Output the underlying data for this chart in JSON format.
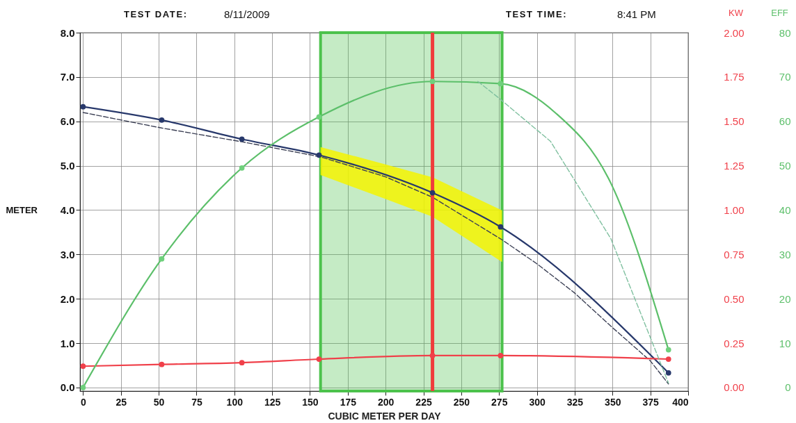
{
  "chart_data": {
    "type": "line",
    "xlabel": "CUBIC METER PER DAY",
    "ylabel": "METER",
    "y2label": "KW",
    "y3label": "EFF",
    "annotations": [
      "TEST DATE:",
      "8/11/2009",
      "TEST TIME:",
      "8:41 PM"
    ],
    "xlim": [
      -2,
      400
    ],
    "xticks": [
      0,
      25,
      50,
      75,
      100,
      125,
      150,
      175,
      200,
      225,
      250,
      275,
      300,
      325,
      350,
      375,
      400
    ],
    "ylim": [
      -0.08,
      8
    ],
    "yticks": [
      {
        "value": 0,
        "label": "0.0"
      },
      {
        "value": 1,
        "label": "1.0"
      },
      {
        "value": 2,
        "label": "2.0"
      },
      {
        "value": 3,
        "label": "3.0"
      },
      {
        "value": 4,
        "label": "4.0"
      },
      {
        "value": 5,
        "label": "5.0"
      },
      {
        "value": 6,
        "label": "6.0"
      },
      {
        "value": 7,
        "label": "7.0"
      },
      {
        "value": 8,
        "label": "8.0"
      }
    ],
    "y2lim": [
      -0.02,
      2
    ],
    "y2ticks": [
      {
        "value": 0,
        "label": "0.00"
      },
      {
        "value": 0.25,
        "label": "0.25"
      },
      {
        "value": 0.5,
        "label": "0.50"
      },
      {
        "value": 0.75,
        "label": "0.75"
      },
      {
        "value": 1,
        "label": "1.00"
      },
      {
        "value": 1.25,
        "label": "1.25"
      },
      {
        "value": 1.5,
        "label": "1.50"
      },
      {
        "value": 1.75,
        "label": "1.75"
      },
      {
        "value": 2,
        "label": "2.00"
      }
    ],
    "y3lim": [
      -0.8,
      80
    ],
    "y3ticks": [
      0,
      10,
      20,
      30,
      40,
      50,
      60,
      70,
      80
    ],
    "grid": true,
    "bands": [
      {
        "axis": "x",
        "from": 157,
        "to": 277,
        "color": "#4cc24c"
      }
    ],
    "ref_lines": [
      {
        "axis": "x",
        "value": 231,
        "color": "#f03c3c"
      }
    ],
    "series": [
      {
        "color": "#27386b",
        "x": [
          0,
          52,
          105,
          156,
          231,
          276,
          387
        ],
        "values": [
          6.33,
          6.03,
          5.6,
          5.24,
          4.39,
          3.62,
          0.33
        ],
        "marker": "circle",
        "line_style": "solid"
      },
      {
        "color": "#3c4055",
        "x": [
          0,
          52,
          105,
          157,
          200,
          231,
          277,
          300,
          325,
          350,
          375,
          387
        ],
        "values": [
          6.2,
          5.85,
          5.54,
          5.2,
          4.75,
          4.29,
          3.33,
          2.79,
          2.13,
          1.35,
          0.6,
          0.08
        ],
        "lower": [
          null,
          null,
          null,
          4.79,
          4.25,
          3.85,
          2.83,
          null,
          null,
          null,
          null,
          null
        ],
        "upper": [
          null,
          null,
          null,
          5.42,
          5.03,
          4.74,
          3.99,
          null,
          null,
          null,
          null,
          null
        ],
        "marker": "none",
        "line_style": "dashed"
      },
      {
        "color": "#f0404a",
        "axis": "y2",
        "x": [
          0,
          52,
          105,
          156,
          231,
          276,
          387
        ],
        "values": [
          0.12,
          0.13,
          0.14,
          0.16,
          0.18,
          0.18,
          0.16
        ],
        "marker": "circle",
        "line_style": "solid"
      },
      {
        "color": "#5cbf6a",
        "axis": "y3",
        "x": [
          0,
          52,
          105,
          156,
          231,
          276,
          312,
          349,
          387
        ],
        "values": [
          0,
          29,
          49.5,
          61,
          69,
          68.5,
          62,
          46,
          8.5
        ],
        "marker": "none",
        "line_style": "solid"
      },
      {
        "type": "scatter",
        "color": "#6fd07c",
        "axis": "y3",
        "x": [
          0,
          52,
          105,
          156,
          231,
          276,
          387
        ],
        "values": [
          0,
          29,
          49.5,
          61,
          69,
          68.5,
          8.5
        ],
        "marker": "circle"
      },
      {
        "color": "#80c0a0",
        "axis": "y3",
        "x": [
          261,
          274,
          309,
          349,
          387
        ],
        "values": [
          69,
          65.5,
          55.5,
          33.5,
          1
        ],
        "marker": "none",
        "line_style": "dashed"
      }
    ]
  }
}
